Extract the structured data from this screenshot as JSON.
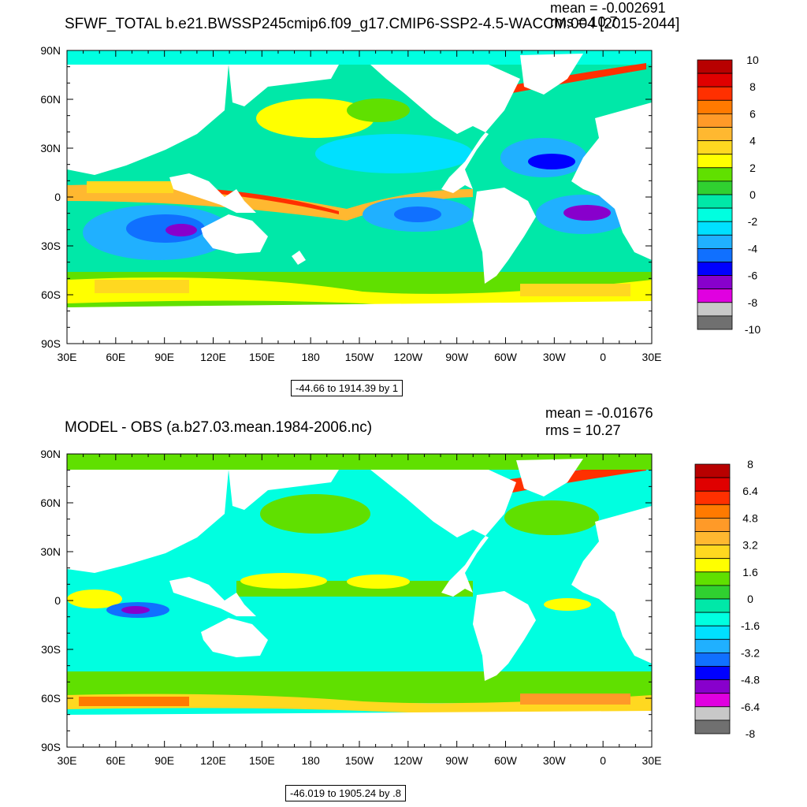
{
  "panels": [
    {
      "title": "SFWF_TOTAL b.e21.BWSSP245cmip6.f09_g17.CMIP6-SSP2-4.5-WACCM.004 [2015-2044]",
      "mean_label": "mean = -0.002691",
      "rms_label": "rms = 10.7",
      "range_label": "-44.66 to 1914.39 by 1",
      "colorbar": {
        "labels": [
          "10",
          "8",
          "6",
          "4",
          "2",
          "0",
          "-2",
          "-4",
          "-6",
          "-8",
          "-10"
        ],
        "colors": [
          "#b80000",
          "#e00000",
          "#ff3000",
          "#ff7a00",
          "#ff9a28",
          "#ffb830",
          "#ffd820",
          "#ffff00",
          "#60e000",
          "#30d030",
          "#00e8a8",
          "#00ffe0",
          "#00e0ff",
          "#20b0ff",
          "#1070ff",
          "#0000ff",
          "#8800cc",
          "#e000e0",
          "#c8c8c8",
          "#707070"
        ]
      }
    },
    {
      "title": "MODEL - OBS (a.b27.03.mean.1984-2006.nc)",
      "mean_label": "mean = -0.01676",
      "rms_label": "rms = 10.27",
      "range_label": "-46.019 to 1905.24 by .8",
      "colorbar": {
        "labels": [
          "8",
          "6.4",
          "4.8",
          "3.2",
          "1.6",
          "0",
          "-1.6",
          "-3.2",
          "-4.8",
          "-6.4",
          "-8"
        ],
        "colors": [
          "#b80000",
          "#e00000",
          "#ff3000",
          "#ff7a00",
          "#ff9a28",
          "#ffb830",
          "#ffd820",
          "#ffff00",
          "#60e000",
          "#30d030",
          "#00e8a8",
          "#00ffe0",
          "#00e0ff",
          "#20b0ff",
          "#1070ff",
          "#0000ff",
          "#8800cc",
          "#e000e0",
          "#c8c8c8",
          "#707070"
        ]
      }
    }
  ],
  "axes": {
    "lat_labels": [
      "90N",
      "60N",
      "30N",
      "0",
      "30S",
      "60S",
      "90S"
    ],
    "lon_labels": [
      "30E",
      "60E",
      "90E",
      "120E",
      "150E",
      "180",
      "150W",
      "120W",
      "90W",
      "60W",
      "30W",
      "0",
      "30E"
    ]
  },
  "map_colors": {
    "ocean_base": "#00e8a8",
    "land": "#ffffff",
    "colorbar_outline": "#000000"
  }
}
